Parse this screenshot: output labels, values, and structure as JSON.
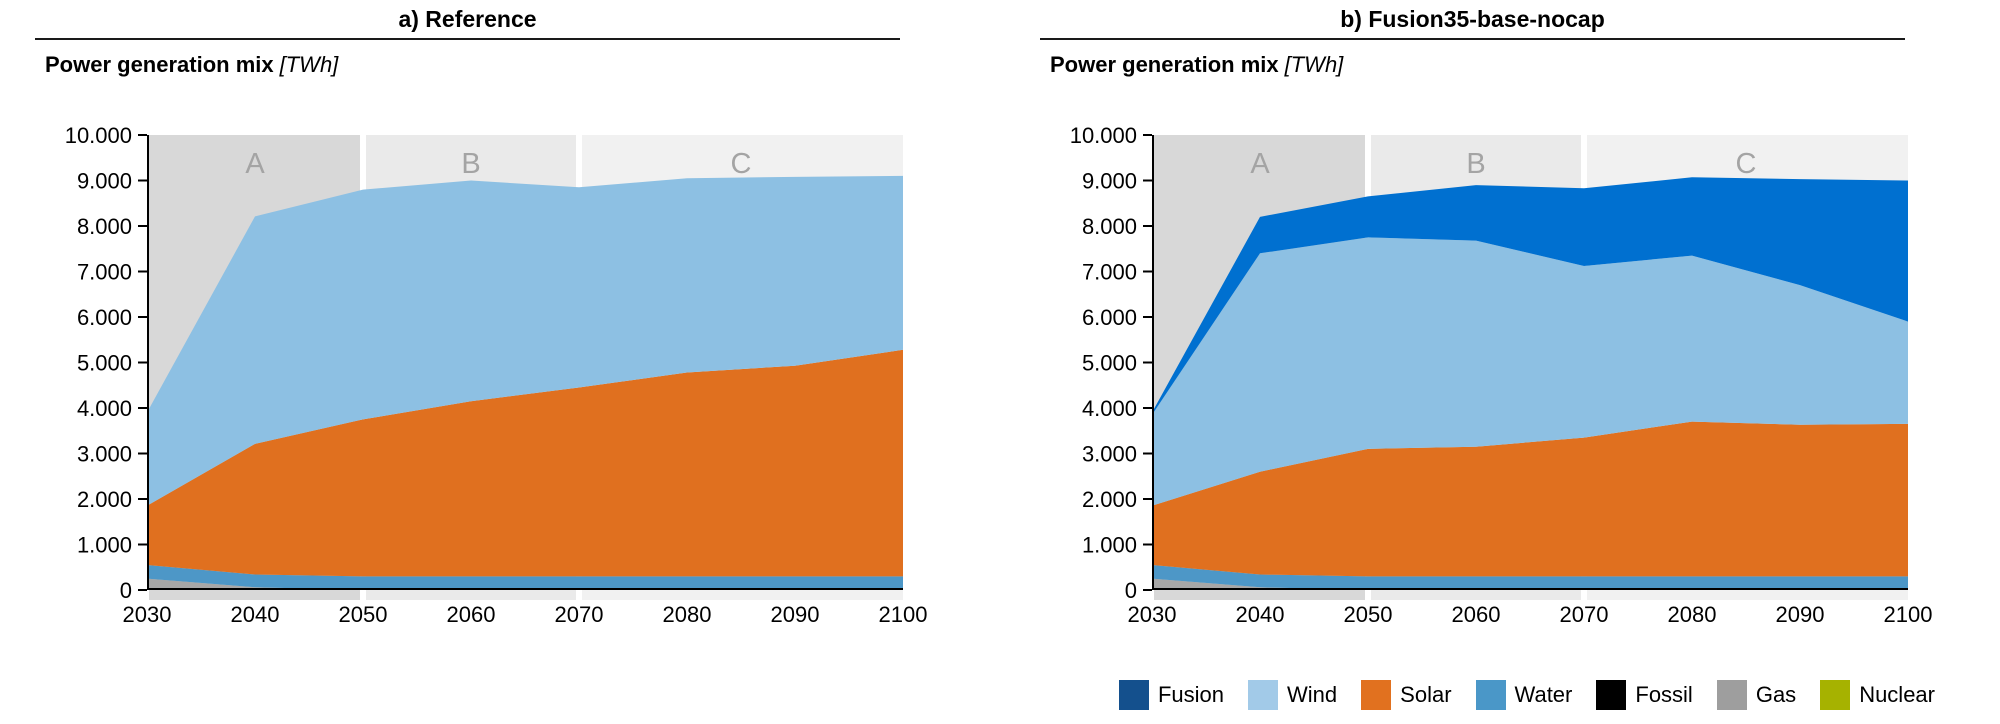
{
  "figure": {
    "unit": "TWh",
    "background": "#ffffff"
  },
  "panels": [
    {
      "title": "a) Reference",
      "subtitle": "Power generation mix",
      "subtitle_unit": "[TWh]"
    },
    {
      "title": "b) Fusion35-base-nocap",
      "subtitle": "Power generation mix",
      "subtitle_unit": "[TWh]"
    }
  ],
  "legend": {
    "items": [
      {
        "label": "Fusion",
        "color": "#14508d"
      },
      {
        "label": "Wind",
        "color": "#a2cae8"
      },
      {
        "label": "Solar",
        "color": "#e1711f"
      },
      {
        "label": "Water",
        "color": "#4a97c8"
      },
      {
        "label": "Fossil",
        "color": "#000000"
      },
      {
        "label": "Gas",
        "color": "#9e9e9e"
      },
      {
        "label": "Nuclear",
        "color": "#a6b200"
      }
    ]
  },
  "chart_data": [
    {
      "type": "area",
      "stacked": true,
      "title": "a) Reference",
      "ylabel": "Power generation mix [TWh]",
      "xlabel": "",
      "x": [
        2030,
        2040,
        2050,
        2060,
        2070,
        2080,
        2090,
        2100
      ],
      "xlim": [
        2030,
        2100
      ],
      "ylim": [
        0,
        10000
      ],
      "grid": false,
      "legend_position": "shared-bottom-right",
      "ytick_labels": [
        "0",
        "1.000",
        "2.000",
        "3.000",
        "4.000",
        "5.000",
        "6.000",
        "7.000",
        "8.000",
        "9.000",
        "10.000"
      ],
      "xtick_labels": [
        "2030",
        "2040",
        "2050",
        "2060",
        "2070",
        "2080",
        "2090",
        "2100"
      ],
      "bands": [
        {
          "label": "A",
          "from": 2030,
          "to": 2050,
          "color": "#d8d8d8"
        },
        {
          "label": "B",
          "from": 2050,
          "to": 2070,
          "color": "#eaeaea"
        },
        {
          "label": "C",
          "from": 2070,
          "to": 2100,
          "color": "#f1f1f1"
        }
      ],
      "band_label_color": "#a4a4a4",
      "series": [
        {
          "name": "Nuclear",
          "color": "#a6b200",
          "values": [
            0,
            0,
            0,
            0,
            0,
            0,
            0,
            0
          ]
        },
        {
          "name": "Gas",
          "color": "#a7a7a7",
          "values": [
            250,
            60,
            0,
            0,
            0,
            0,
            0,
            0
          ]
        },
        {
          "name": "Fossil",
          "color": "#000000",
          "values": [
            0,
            0,
            0,
            0,
            0,
            0,
            0,
            0
          ]
        },
        {
          "name": "Water",
          "color": "#4d97c7",
          "values": [
            300,
            280,
            300,
            300,
            300,
            300,
            300,
            300
          ]
        },
        {
          "name": "Solar",
          "color": "#e0701f",
          "values": [
            1300,
            2870,
            3450,
            3850,
            4150,
            4480,
            4630,
            4980
          ]
        },
        {
          "name": "Wind",
          "color": "#8dc0e3",
          "values": [
            2050,
            5000,
            5050,
            4850,
            4400,
            4270,
            4150,
            3820
          ]
        },
        {
          "name": "Fusion",
          "color": "#0070d0",
          "values": [
            0,
            0,
            0,
            0,
            0,
            0,
            0,
            0
          ]
        }
      ]
    },
    {
      "type": "area",
      "stacked": true,
      "title": "b) Fusion35-base-nocap",
      "ylabel": "Power generation mix [TWh]",
      "xlabel": "",
      "x": [
        2030,
        2040,
        2050,
        2060,
        2070,
        2080,
        2090,
        2100
      ],
      "xlim": [
        2030,
        2100
      ],
      "ylim": [
        0,
        10000
      ],
      "grid": false,
      "legend_position": "shared-bottom-right",
      "ytick_labels": [
        "0",
        "1.000",
        "2.000",
        "3.000",
        "4.000",
        "5.000",
        "6.000",
        "7.000",
        "8.000",
        "9.000",
        "10.000"
      ],
      "xtick_labels": [
        "2030",
        "2040",
        "2050",
        "2060",
        "2070",
        "2080",
        "2090",
        "2100"
      ],
      "bands": [
        {
          "label": "A",
          "from": 2030,
          "to": 2050,
          "color": "#d8d8d8"
        },
        {
          "label": "B",
          "from": 2050,
          "to": 2070,
          "color": "#eaeaea"
        },
        {
          "label": "C",
          "from": 2070,
          "to": 2100,
          "color": "#f1f1f1"
        }
      ],
      "band_label_color": "#a4a4a4",
      "series": [
        {
          "name": "Nuclear",
          "color": "#a6b200",
          "values": [
            0,
            0,
            0,
            0,
            0,
            0,
            0,
            0
          ]
        },
        {
          "name": "Gas",
          "color": "#a7a7a7",
          "values": [
            250,
            60,
            0,
            0,
            0,
            0,
            0,
            0
          ]
        },
        {
          "name": "Fossil",
          "color": "#000000",
          "values": [
            0,
            0,
            0,
            0,
            0,
            0,
            0,
            0
          ]
        },
        {
          "name": "Water",
          "color": "#4d97c7",
          "values": [
            300,
            280,
            300,
            300,
            300,
            300,
            300,
            300
          ]
        },
        {
          "name": "Solar",
          "color": "#e0701f",
          "values": [
            1300,
            2260,
            2800,
            2850,
            3050,
            3400,
            3330,
            3350
          ]
        },
        {
          "name": "Wind",
          "color": "#8dc0e3",
          "values": [
            2000,
            4800,
            4650,
            4530,
            3770,
            3650,
            3070,
            2250
          ]
        },
        {
          "name": "Fusion",
          "color": "#0070d0",
          "values": [
            50,
            800,
            900,
            1220,
            1710,
            1720,
            2330,
            3100
          ]
        }
      ]
    }
  ]
}
